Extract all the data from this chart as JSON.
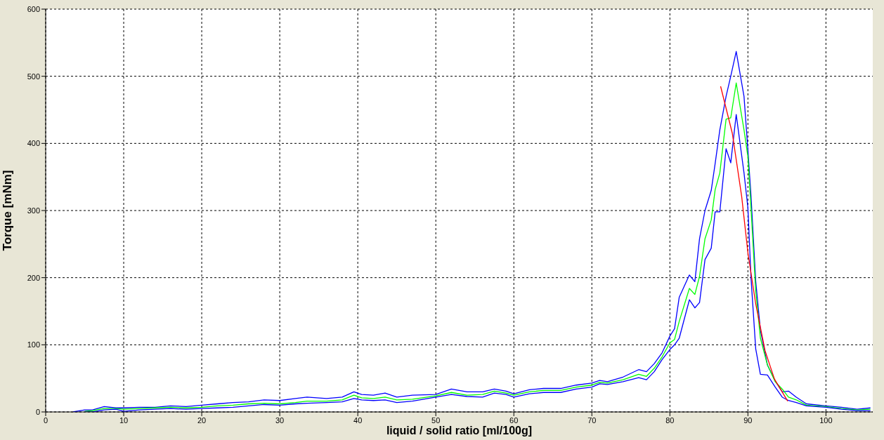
{
  "chart_data": {
    "type": "line",
    "xlabel": "liquid / solid ratio [ml/100g]",
    "ylabel": "Torque [mNm]",
    "x": [
      3.5,
      5,
      6,
      7.5,
      9,
      10,
      12,
      14,
      16,
      18,
      20,
      22,
      24,
      26,
      28,
      30,
      32,
      33.5,
      36,
      38,
      39.5,
      40.5,
      42,
      43.5,
      45,
      47,
      50,
      52,
      54,
      56,
      57.5,
      59,
      60,
      62,
      63.8,
      66,
      68,
      70,
      71,
      72,
      74,
      76,
      77,
      78,
      79,
      80,
      80.6,
      81.2,
      82.5,
      83.2,
      83.8,
      84.5,
      85.3,
      85.8,
      86.4,
      87.2,
      87.8,
      88.5,
      89.5,
      90,
      90.4,
      91,
      91.6,
      92.5,
      93.5,
      94.4,
      95.2,
      96.2,
      97.5,
      100,
      102,
      104,
      105.7
    ],
    "series": [
      {
        "color": "#0000ff",
        "values": [
          0,
          3,
          3,
          8,
          6,
          6,
          7,
          7,
          9,
          8,
          10,
          12,
          14,
          15,
          18,
          17,
          20,
          22,
          20,
          22,
          30,
          26,
          25,
          28,
          22,
          25,
          26,
          34,
          30,
          30,
          34,
          31,
          27,
          33,
          35,
          35,
          40,
          43,
          47,
          45,
          52,
          63,
          60,
          72,
          88,
          113,
          124,
          171,
          204,
          194,
          258,
          300,
          330,
          370,
          420,
          470,
          500,
          537,
          470,
          390,
          321,
          195,
          122,
          70,
          46,
          30,
          31,
          22,
          12,
          9,
          7,
          4,
          6
        ]
      },
      {
        "color": "#00ff00",
        "values": [
          null,
          1,
          2,
          5,
          5,
          4,
          5,
          6,
          7,
          6,
          7,
          9,
          10,
          12,
          13,
          12,
          14,
          16,
          16,
          18,
          25,
          21,
          20,
          22,
          18,
          19,
          24,
          29,
          25,
          26,
          31,
          28,
          25,
          30,
          32,
          32,
          37,
          40,
          44,
          43,
          48,
          56,
          53,
          65,
          82,
          103,
          108,
          135,
          184,
          175,
          202,
          258,
          286,
          331,
          356,
          436,
          438,
          490,
          420,
          380,
          303,
          180,
          110,
          70,
          45,
          34,
          22,
          18,
          10,
          8,
          5,
          3,
          4
        ]
      },
      {
        "color": "#0000ff",
        "values": [
          null,
          0,
          0,
          3,
          4,
          1,
          3,
          4,
          5,
          4,
          5,
          6,
          7,
          9,
          11,
          10,
          12,
          13,
          14,
          15,
          20,
          18,
          17,
          18,
          14,
          16,
          22,
          26,
          23,
          22,
          28,
          26,
          22,
          27,
          29,
          29,
          34,
          37,
          42,
          41,
          45,
          51,
          48,
          60,
          78,
          93,
          100,
          110,
          167,
          155,
          163,
          227,
          244,
          298,
          298,
          392,
          371,
          443,
          356,
          304,
          199,
          94,
          56,
          55,
          37,
          22,
          17,
          14,
          9,
          7,
          4,
          2,
          2
        ]
      },
      {
        "color": "#ff0000",
        "x": [
          86.5,
          88,
          89.2,
          90,
          91,
          92.2,
          93.4,
          95.1
        ],
        "values": [
          485,
          415,
          321,
          237,
          161,
          91,
          49,
          16
        ]
      }
    ],
    "xlim": [
      0,
      106
    ],
    "xticks": [
      0,
      10,
      20,
      30,
      40,
      50,
      60,
      70,
      80,
      90,
      100
    ],
    "ylim": [
      0,
      600
    ],
    "yticks": [
      0,
      100,
      200,
      300,
      400,
      500,
      600
    ],
    "grid": true
  }
}
